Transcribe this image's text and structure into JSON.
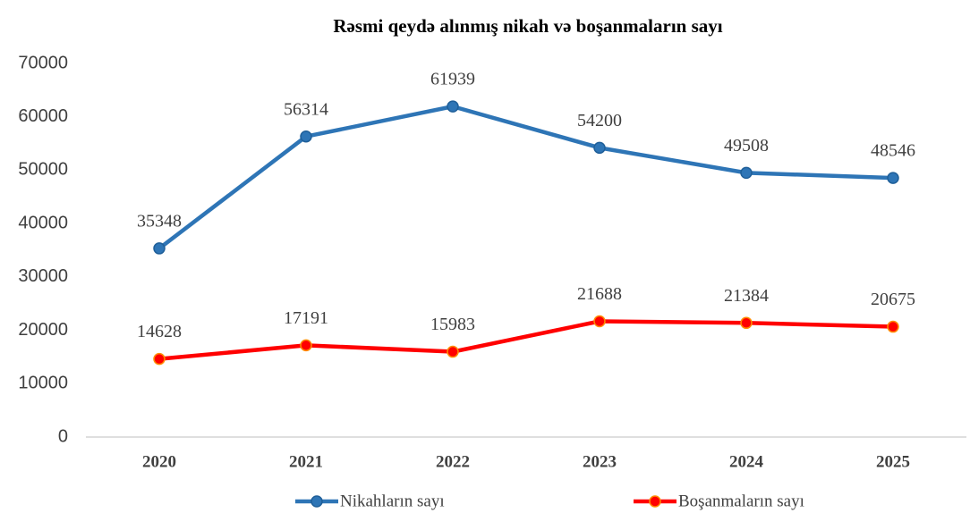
{
  "chart_data": {
    "type": "line",
    "title": "Rəsmi qeydə alınmış nikah və boşanmaların sayı",
    "categories": [
      "2020",
      "2021",
      "2022",
      "2023",
      "2024",
      "2025"
    ],
    "series": [
      {
        "name": "Nikahların sayı",
        "color": "#2e75b6",
        "values": [
          35348,
          56314,
          61939,
          54200,
          49508,
          48546
        ]
      },
      {
        "name": "Boşanmaların sayı",
        "color": "#ff0000",
        "values": [
          14628,
          17191,
          15983,
          21688,
          21384,
          20675
        ]
      }
    ],
    "ylim": [
      0,
      70000
    ],
    "yticks": [
      0,
      10000,
      20000,
      30000,
      40000,
      50000,
      60000,
      70000
    ],
    "grid": false,
    "legend": "bottom"
  }
}
